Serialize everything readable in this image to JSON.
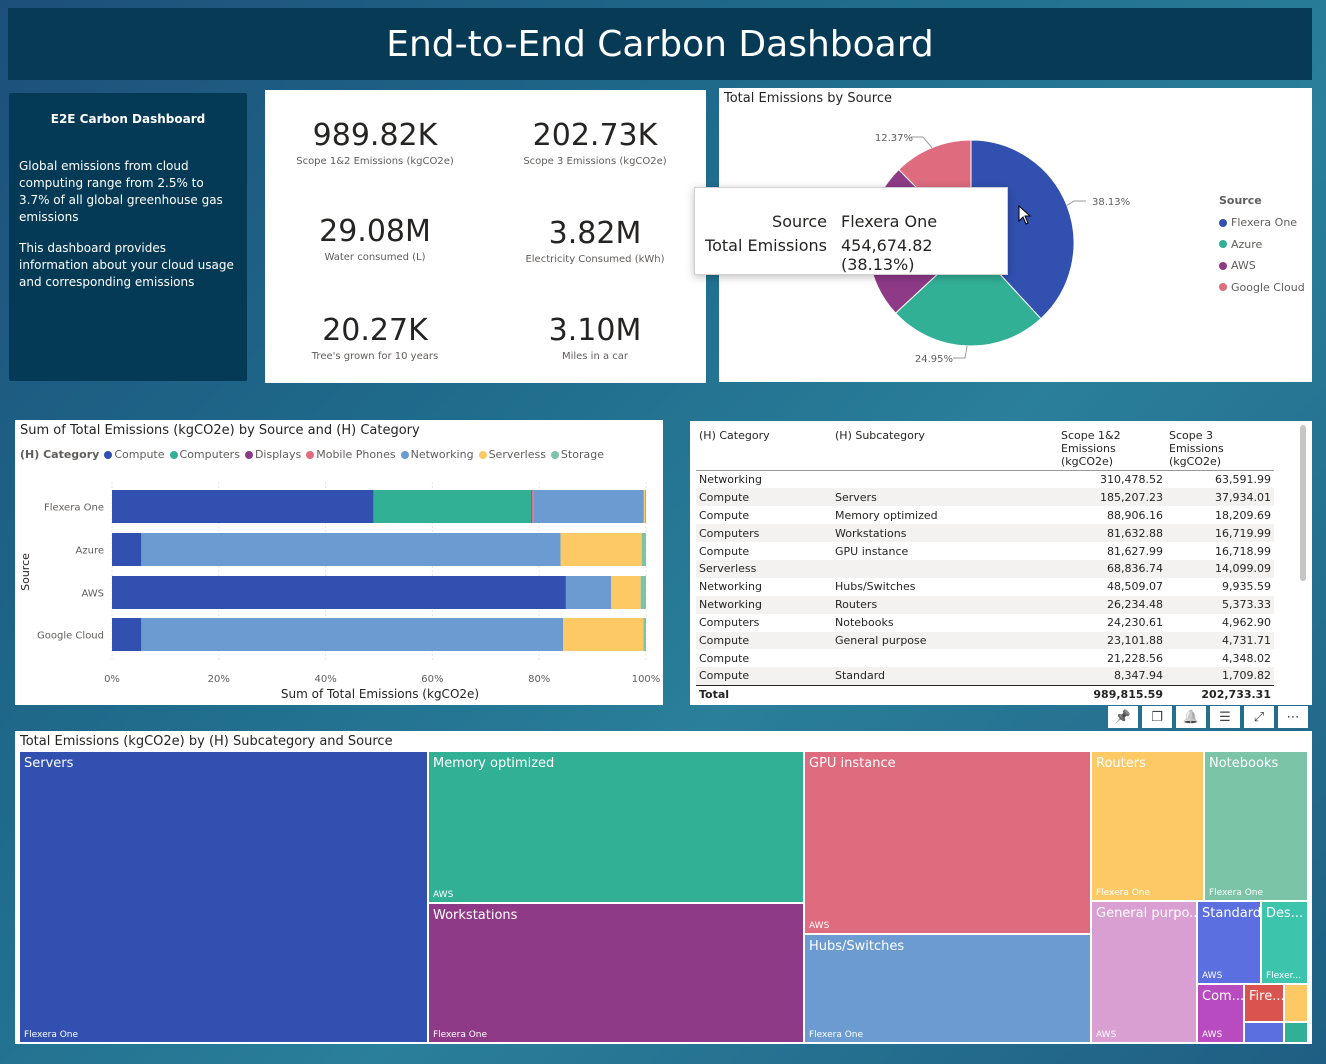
{
  "title": "End-to-End Carbon Dashboard",
  "info": {
    "heading": "E2E Carbon Dashboard",
    "para1": "Global emissions from cloud computing range from 2.5% to 3.7% of all global greenhouse gas emissions",
    "para2": "This dashboard provides information about your cloud usage and corresponding emissions"
  },
  "kpis": [
    {
      "value": "989.82K",
      "label": "Scope 1&2 Emissions (kgCO2e)"
    },
    {
      "value": "202.73K",
      "label": "Scope 3 Emissions (kgCO2e)"
    },
    {
      "value": "29.08M",
      "label": "Water consumed (L)"
    },
    {
      "value": "3.82M",
      "label": "Electricity Consumed (kWh)"
    },
    {
      "value": "20.27K",
      "label": "Tree's grown for 10 years"
    },
    {
      "value": "3.10M",
      "label": "Miles in a car"
    }
  ],
  "pie": {
    "title": "Total Emissions by Source",
    "legend_title": "Source",
    "colors": {
      "Flexera One": "#3150b0",
      "Azure": "#31b095",
      "AWS": "#8e3a87",
      "Google Cloud": "#de6b7e"
    },
    "chart_data": {
      "type": "pie",
      "labels": [
        "Flexera One",
        "Azure",
        "AWS",
        "Google Cloud"
      ],
      "values": [
        38.13,
        24.95,
        24.55,
        12.37
      ],
      "data_labels": [
        "38.13%",
        "24.95%",
        "",
        "12.37%"
      ]
    },
    "tooltip": {
      "k1": "Source",
      "v1": "Flexera One",
      "k2": "Total Emissions",
      "v2": "454,674.82 (38.13%)"
    }
  },
  "bar": {
    "title": "Sum of Total Emissions (kgCO2e) by Source and (H) Category",
    "legend_title": "(H) Category",
    "xlabel": "Sum of Total Emissions (kgCO2e)",
    "ylabel": "Source",
    "colors": {
      "Compute": "#3150b0",
      "Computers": "#31b095",
      "Displays": "#8e3a87",
      "Mobile Phones": "#de6b7e",
      "Networking": "#6b9bd0",
      "Serverless": "#fdc964",
      "Storage": "#7cc4a8"
    },
    "chart_data": {
      "type": "bar",
      "orientation": "horizontal-stacked-100",
      "categories": [
        "Flexera One",
        "Azure",
        "AWS",
        "Google Cloud"
      ],
      "series": [
        {
          "name": "Compute",
          "values": [
            49,
            5.5,
            85,
            5.5
          ]
        },
        {
          "name": "Computers",
          "values": [
            29.5,
            0,
            0,
            0
          ]
        },
        {
          "name": "Displays",
          "values": [
            0.2,
            0,
            0,
            0
          ]
        },
        {
          "name": "Mobile Phones",
          "values": [
            0.2,
            0,
            0,
            0
          ]
        },
        {
          "name": "Networking",
          "values": [
            20.7,
            78.5,
            8.5,
            79
          ]
        },
        {
          "name": "Serverless",
          "values": [
            0.2,
            15.2,
            5.5,
            15
          ]
        },
        {
          "name": "Storage",
          "values": [
            0.2,
            0.8,
            1,
            0.5
          ]
        }
      ],
      "xticks": [
        "0%",
        "20%",
        "40%",
        "60%",
        "80%",
        "100%"
      ],
      "xlim": [
        0,
        100
      ]
    }
  },
  "table": {
    "headers": [
      "(H) Category",
      "(H) Subcategory",
      "Scope 1&2 Emissions (kgCO2e)",
      "Scope 3 Emissions (kgCO2e)"
    ],
    "rows": [
      [
        "Networking",
        "",
        "310,478.52",
        "63,591.99"
      ],
      [
        "Compute",
        "Servers",
        "185,207.23",
        "37,934.01"
      ],
      [
        "Compute",
        "Memory optimized",
        "88,906.16",
        "18,209.69"
      ],
      [
        "Computers",
        "Workstations",
        "81,632.88",
        "16,719.99"
      ],
      [
        "Compute",
        "GPU instance",
        "81,627.99",
        "16,718.99"
      ],
      [
        "Serverless",
        "",
        "68,836.74",
        "14,099.09"
      ],
      [
        "Networking",
        "Hubs/Switches",
        "48,509.07",
        "9,935.59"
      ],
      [
        "Networking",
        "Routers",
        "26,234.48",
        "5,373.33"
      ],
      [
        "Computers",
        "Notebooks",
        "24,230.61",
        "4,962.90"
      ],
      [
        "Compute",
        "General purpose",
        "23,101.88",
        "4,731.71"
      ],
      [
        "Compute",
        "",
        "21,228.56",
        "4,348.02"
      ],
      [
        "Compute",
        "Standard",
        "8,347.94",
        "1,709.82"
      ]
    ],
    "total": [
      "Total",
      "",
      "989,815.59",
      "202,733.31"
    ]
  },
  "toolbar": [
    "pin-icon",
    "copy-icon",
    "bell-icon",
    "filter-icon",
    "expand-icon",
    "more-icon"
  ],
  "treemap": {
    "title": "Total Emissions (kgCO2e) by (H) Subcategory and Source",
    "cells": [
      {
        "label": "Servers",
        "sub": "Flexera One",
        "color": "#3150b0"
      },
      {
        "label": "Memory optimized",
        "sub": "AWS",
        "color": "#31b095"
      },
      {
        "label": "Workstations",
        "sub": "Flexera One",
        "color": "#8e3a87"
      },
      {
        "label": "GPU instance",
        "sub": "AWS",
        "color": "#de6b7e"
      },
      {
        "label": "Hubs/Switches",
        "sub": "Flexera One",
        "color": "#6b9bd0"
      },
      {
        "label": "Routers",
        "sub": "Flexera One",
        "color": "#fdc964"
      },
      {
        "label": "Notebooks",
        "sub": "Flexera One",
        "color": "#7cc4a8"
      },
      {
        "label": "General purpo...",
        "sub": "AWS",
        "color": "#d99ed2"
      },
      {
        "label": "Standard",
        "sub": "AWS",
        "color": "#5b6fe0"
      },
      {
        "label": "Des...",
        "sub": "Flexer...",
        "color": "#3cc4ad"
      },
      {
        "label": "Com...",
        "sub": "AWS",
        "color": "#b84bc0"
      },
      {
        "label": "Fire...",
        "sub": "",
        "color": "#d9534f"
      }
    ]
  }
}
